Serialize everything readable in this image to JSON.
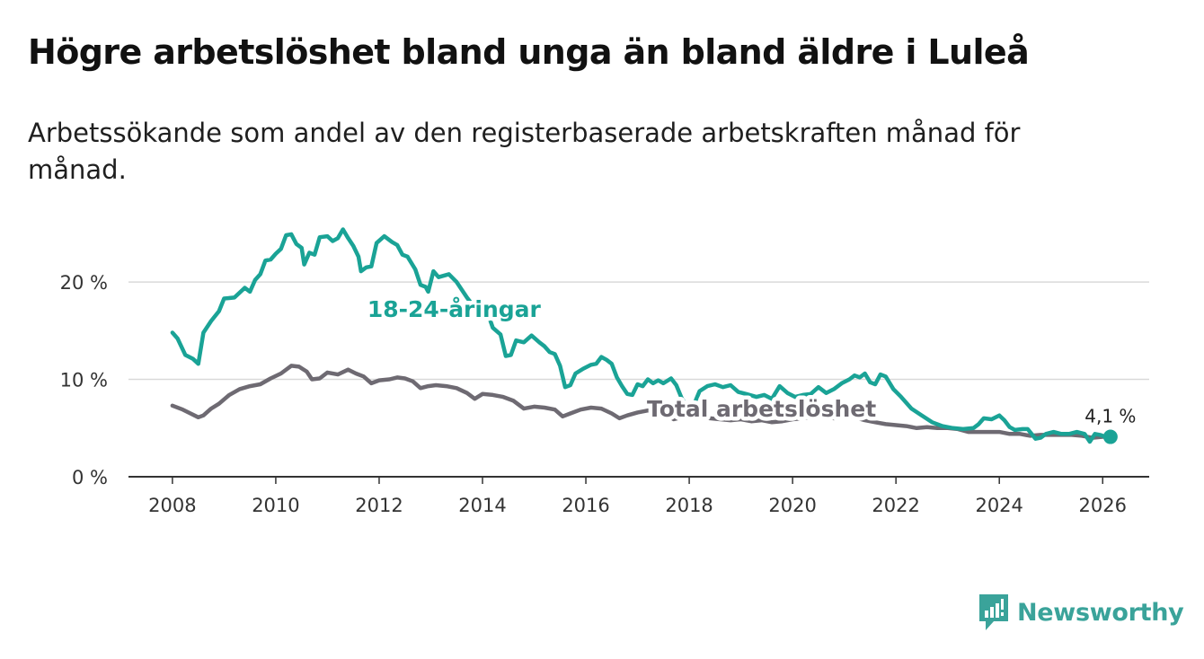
{
  "title": "Högre arbetslöshet bland unga än bland äldre i Luleå",
  "subtitle": "Arbetssökande som andel av den registerbaserade arbetskraften månad för månad.",
  "logo": {
    "text": "Newsworthy",
    "icon": "newsworthy-chart-icon"
  },
  "colors": {
    "youth": "#1aa396",
    "total": "#6e6a72",
    "grid": "#d9d9d9",
    "axis": "#333333"
  },
  "chart_data": {
    "type": "line",
    "xlim": [
      2007.15,
      2026.9
    ],
    "ylim": [
      0,
      26
    ],
    "x_ticks": [
      {
        "value": 2008,
        "label": "2008"
      },
      {
        "value": 2010,
        "label": "2010"
      },
      {
        "value": 2012,
        "label": "2012"
      },
      {
        "value": 2014,
        "label": "2014"
      },
      {
        "value": 2016,
        "label": "2016"
      },
      {
        "value": 2018,
        "label": "2018"
      },
      {
        "value": 2020,
        "label": "2020"
      },
      {
        "value": 2022,
        "label": "2022"
      },
      {
        "value": 2024,
        "label": "2024"
      },
      {
        "value": 2026,
        "label": "2026"
      }
    ],
    "y_ticks": [
      {
        "value": 0,
        "label": "0 %"
      },
      {
        "value": 10,
        "label": "10 %"
      },
      {
        "value": 20,
        "label": "20 %"
      }
    ],
    "grid": true,
    "series": [
      {
        "name": "18-24-åringar",
        "label": "18-24-åringar",
        "color": "#1aa396",
        "points": [
          [
            2008.0,
            14.8
          ],
          [
            2008.1,
            14.2
          ],
          [
            2008.25,
            12.5
          ],
          [
            2008.4,
            12.1
          ],
          [
            2008.5,
            11.6
          ],
          [
            2008.6,
            14.8
          ],
          [
            2008.75,
            16.0
          ],
          [
            2008.9,
            17.0
          ],
          [
            2009.0,
            18.3
          ],
          [
            2009.2,
            18.4
          ],
          [
            2009.4,
            19.4
          ],
          [
            2009.5,
            19.0
          ],
          [
            2009.6,
            20.2
          ],
          [
            2009.7,
            20.8
          ],
          [
            2009.8,
            22.2
          ],
          [
            2009.9,
            22.3
          ],
          [
            2010.0,
            22.9
          ],
          [
            2010.1,
            23.4
          ],
          [
            2010.2,
            24.8
          ],
          [
            2010.3,
            24.9
          ],
          [
            2010.4,
            23.9
          ],
          [
            2010.5,
            23.5
          ],
          [
            2010.55,
            21.8
          ],
          [
            2010.65,
            23.0
          ],
          [
            2010.75,
            22.8
          ],
          [
            2010.85,
            24.6
          ],
          [
            2011.0,
            24.7
          ],
          [
            2011.1,
            24.2
          ],
          [
            2011.2,
            24.5
          ],
          [
            2011.3,
            25.4
          ],
          [
            2011.4,
            24.5
          ],
          [
            2011.5,
            23.7
          ],
          [
            2011.6,
            22.6
          ],
          [
            2011.65,
            21.1
          ],
          [
            2011.75,
            21.5
          ],
          [
            2011.85,
            21.6
          ],
          [
            2011.95,
            24.0
          ],
          [
            2012.1,
            24.7
          ],
          [
            2012.25,
            24.1
          ],
          [
            2012.35,
            23.8
          ],
          [
            2012.45,
            22.8
          ],
          [
            2012.55,
            22.6
          ],
          [
            2012.7,
            21.3
          ],
          [
            2012.8,
            19.7
          ],
          [
            2012.9,
            19.5
          ],
          [
            2012.95,
            19.0
          ],
          [
            2013.05,
            21.1
          ],
          [
            2013.15,
            20.5
          ],
          [
            2013.35,
            20.8
          ],
          [
            2013.5,
            20.0
          ],
          [
            2013.7,
            18.4
          ],
          [
            2013.9,
            17.0
          ],
          [
            2014.0,
            17.2
          ],
          [
            2014.1,
            16.8
          ],
          [
            2014.2,
            15.3
          ],
          [
            2014.35,
            14.6
          ],
          [
            2014.45,
            12.4
          ],
          [
            2014.55,
            12.5
          ],
          [
            2014.65,
            14.0
          ],
          [
            2014.8,
            13.8
          ],
          [
            2014.95,
            14.5
          ],
          [
            2015.1,
            13.8
          ],
          [
            2015.2,
            13.4
          ],
          [
            2015.3,
            12.8
          ],
          [
            2015.4,
            12.6
          ],
          [
            2015.5,
            11.4
          ],
          [
            2015.6,
            9.2
          ],
          [
            2015.7,
            9.4
          ],
          [
            2015.8,
            10.6
          ],
          [
            2015.95,
            11.1
          ],
          [
            2016.1,
            11.5
          ],
          [
            2016.2,
            11.6
          ],
          [
            2016.3,
            12.3
          ],
          [
            2016.4,
            12.0
          ],
          [
            2016.5,
            11.6
          ],
          [
            2016.6,
            10.2
          ],
          [
            2016.7,
            9.3
          ],
          [
            2016.8,
            8.5
          ],
          [
            2016.9,
            8.4
          ],
          [
            2017.0,
            9.5
          ],
          [
            2017.1,
            9.3
          ],
          [
            2017.2,
            10.0
          ],
          [
            2017.3,
            9.6
          ],
          [
            2017.4,
            9.9
          ],
          [
            2017.5,
            9.6
          ],
          [
            2017.65,
            10.1
          ],
          [
            2017.75,
            9.4
          ],
          [
            2017.85,
            8.1
          ],
          [
            2017.95,
            7.2
          ],
          [
            2018.05,
            6.9
          ],
          [
            2018.2,
            8.8
          ],
          [
            2018.35,
            9.3
          ],
          [
            2018.5,
            9.5
          ],
          [
            2018.65,
            9.2
          ],
          [
            2018.8,
            9.4
          ],
          [
            2018.95,
            8.7
          ],
          [
            2019.1,
            8.5
          ],
          [
            2019.3,
            8.2
          ],
          [
            2019.45,
            8.4
          ],
          [
            2019.6,
            8.0
          ],
          [
            2019.75,
            9.3
          ],
          [
            2019.9,
            8.6
          ],
          [
            2020.05,
            8.2
          ],
          [
            2020.2,
            8.4
          ],
          [
            2020.35,
            8.5
          ],
          [
            2020.5,
            9.2
          ],
          [
            2020.65,
            8.6
          ],
          [
            2020.8,
            9.0
          ],
          [
            2020.95,
            9.6
          ],
          [
            2021.1,
            10.0
          ],
          [
            2021.2,
            10.4
          ],
          [
            2021.3,
            10.2
          ],
          [
            2021.4,
            10.6
          ],
          [
            2021.5,
            9.7
          ],
          [
            2021.6,
            9.5
          ],
          [
            2021.7,
            10.5
          ],
          [
            2021.8,
            10.3
          ],
          [
            2021.95,
            9.0
          ],
          [
            2022.1,
            8.2
          ],
          [
            2022.3,
            7.0
          ],
          [
            2022.5,
            6.3
          ],
          [
            2022.7,
            5.6
          ],
          [
            2022.9,
            5.2
          ],
          [
            2023.1,
            5.0
          ],
          [
            2023.3,
            4.9
          ],
          [
            2023.5,
            5.0
          ],
          [
            2023.6,
            5.4
          ],
          [
            2023.7,
            6.0
          ],
          [
            2023.85,
            5.9
          ],
          [
            2024.0,
            6.3
          ],
          [
            2024.1,
            5.8
          ],
          [
            2024.2,
            5.1
          ],
          [
            2024.3,
            4.8
          ],
          [
            2024.45,
            4.9
          ],
          [
            2024.55,
            4.9
          ],
          [
            2024.7,
            3.9
          ],
          [
            2024.8,
            4.0
          ],
          [
            2024.9,
            4.4
          ],
          [
            2025.05,
            4.6
          ],
          [
            2025.2,
            4.4
          ],
          [
            2025.35,
            4.4
          ],
          [
            2025.5,
            4.6
          ],
          [
            2025.65,
            4.4
          ],
          [
            2025.75,
            3.6
          ],
          [
            2025.85,
            4.4
          ],
          [
            2025.95,
            4.3
          ],
          [
            2026.05,
            4.1
          ],
          [
            2026.15,
            4.1
          ]
        ]
      },
      {
        "name": "Total arbetslöshet",
        "label": "Total arbetslöshet",
        "color": "#6e6a72",
        "points": [
          [
            2008.0,
            7.3
          ],
          [
            2008.2,
            6.9
          ],
          [
            2008.35,
            6.5
          ],
          [
            2008.5,
            6.1
          ],
          [
            2008.6,
            6.3
          ],
          [
            2008.75,
            7.0
          ],
          [
            2008.9,
            7.5
          ],
          [
            2009.1,
            8.4
          ],
          [
            2009.3,
            9.0
          ],
          [
            2009.5,
            9.3
          ],
          [
            2009.7,
            9.5
          ],
          [
            2009.9,
            10.1
          ],
          [
            2010.1,
            10.6
          ],
          [
            2010.3,
            11.4
          ],
          [
            2010.45,
            11.3
          ],
          [
            2010.6,
            10.8
          ],
          [
            2010.7,
            10.0
          ],
          [
            2010.85,
            10.1
          ],
          [
            2011.0,
            10.7
          ],
          [
            2011.2,
            10.5
          ],
          [
            2011.4,
            11.0
          ],
          [
            2011.55,
            10.6
          ],
          [
            2011.7,
            10.3
          ],
          [
            2011.85,
            9.6
          ],
          [
            2012.0,
            9.9
          ],
          [
            2012.2,
            10.0
          ],
          [
            2012.35,
            10.2
          ],
          [
            2012.5,
            10.1
          ],
          [
            2012.65,
            9.8
          ],
          [
            2012.8,
            9.1
          ],
          [
            2012.95,
            9.3
          ],
          [
            2013.1,
            9.4
          ],
          [
            2013.3,
            9.3
          ],
          [
            2013.5,
            9.1
          ],
          [
            2013.7,
            8.6
          ],
          [
            2013.85,
            8.0
          ],
          [
            2014.0,
            8.5
          ],
          [
            2014.2,
            8.4
          ],
          [
            2014.4,
            8.2
          ],
          [
            2014.6,
            7.8
          ],
          [
            2014.8,
            7.0
          ],
          [
            2015.0,
            7.2
          ],
          [
            2015.2,
            7.1
          ],
          [
            2015.4,
            6.9
          ],
          [
            2015.55,
            6.2
          ],
          [
            2015.7,
            6.5
          ],
          [
            2015.9,
            6.9
          ],
          [
            2016.1,
            7.1
          ],
          [
            2016.3,
            7.0
          ],
          [
            2016.5,
            6.5
          ],
          [
            2016.65,
            6.0
          ],
          [
            2016.8,
            6.3
          ],
          [
            2017.0,
            6.6
          ],
          [
            2017.2,
            6.8
          ],
          [
            2017.4,
            6.7
          ],
          [
            2017.55,
            6.4
          ],
          [
            2017.7,
            5.9
          ],
          [
            2017.85,
            6.1
          ],
          [
            2018.0,
            6.2
          ],
          [
            2018.2,
            6.3
          ],
          [
            2018.4,
            6.0
          ],
          [
            2018.6,
            5.9
          ],
          [
            2018.8,
            5.8
          ],
          [
            2019.0,
            5.9
          ],
          [
            2019.2,
            5.7
          ],
          [
            2019.4,
            5.8
          ],
          [
            2019.6,
            5.6
          ],
          [
            2019.8,
            5.7
          ],
          [
            2020.0,
            5.9
          ],
          [
            2020.2,
            6.0
          ],
          [
            2020.4,
            6.2
          ],
          [
            2020.6,
            6.1
          ],
          [
            2020.8,
            6.0
          ],
          [
            2021.0,
            6.2
          ],
          [
            2021.2,
            6.1
          ],
          [
            2021.4,
            5.8
          ],
          [
            2021.6,
            5.6
          ],
          [
            2021.8,
            5.4
          ],
          [
            2022.0,
            5.3
          ],
          [
            2022.2,
            5.2
          ],
          [
            2022.4,
            5.0
          ],
          [
            2022.6,
            5.1
          ],
          [
            2022.8,
            5.0
          ],
          [
            2023.0,
            5.0
          ],
          [
            2023.2,
            4.9
          ],
          [
            2023.4,
            4.6
          ],
          [
            2023.6,
            4.6
          ],
          [
            2023.8,
            4.6
          ],
          [
            2024.0,
            4.6
          ],
          [
            2024.2,
            4.4
          ],
          [
            2024.4,
            4.4
          ],
          [
            2024.6,
            4.2
          ],
          [
            2024.8,
            4.3
          ],
          [
            2025.0,
            4.3
          ],
          [
            2025.2,
            4.3
          ],
          [
            2025.4,
            4.3
          ],
          [
            2025.6,
            4.2
          ],
          [
            2025.8,
            4.0
          ],
          [
            2026.0,
            4.1
          ],
          [
            2026.15,
            4.1
          ]
        ]
      }
    ],
    "annotations": [
      {
        "text": "4,1 %",
        "x": 2026.15,
        "y": 4.1,
        "series": "18-24-åringar"
      }
    ],
    "label_anchors": [
      {
        "series": "18-24-åringar",
        "x": 2013.45,
        "y": 16.4
      },
      {
        "series": "Total arbetslöshet",
        "x": 2019.4,
        "y": 6.2
      }
    ]
  }
}
